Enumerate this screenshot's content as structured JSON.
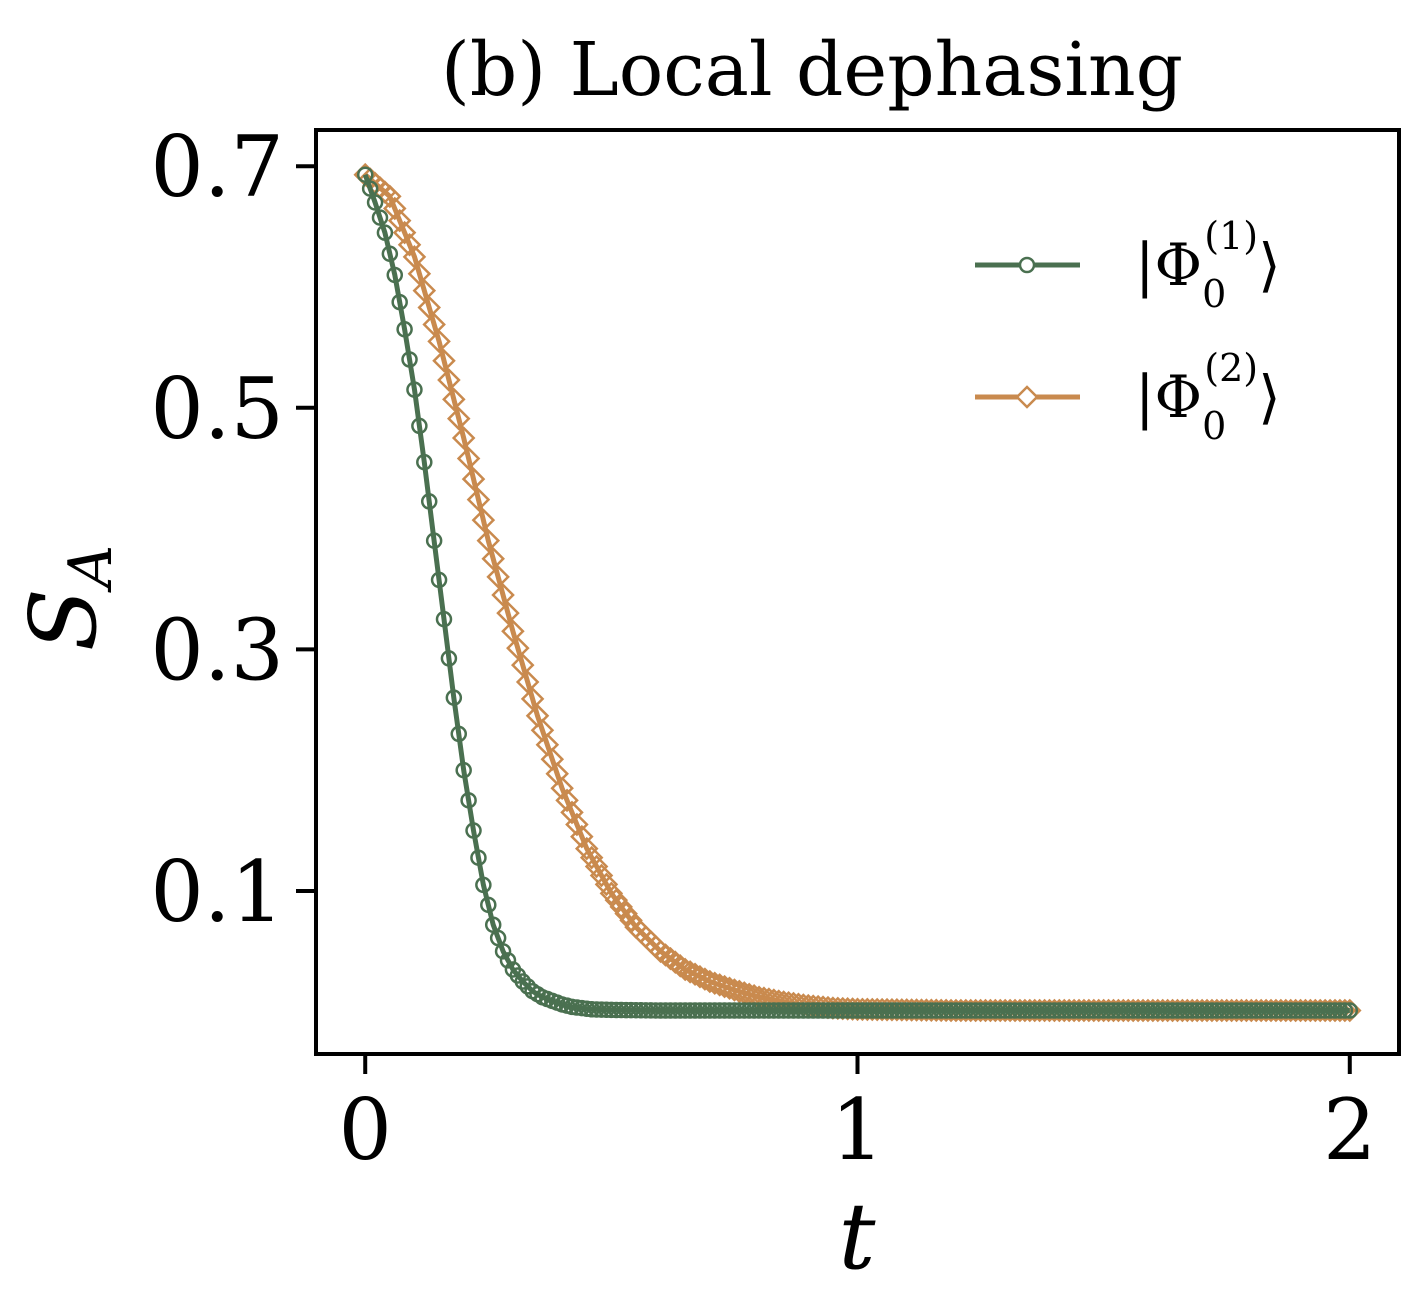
{
  "chart_data": {
    "type": "line",
    "title": "(b) Local dephasing",
    "xlabel": "t",
    "ylabel": "S",
    "ylabel_sub": "A",
    "xlim": [
      -0.1,
      2.1
    ],
    "ylim": [
      -0.035,
      0.73
    ],
    "xticks": [
      0,
      1,
      2
    ],
    "xtick_labels": [
      "0",
      "1",
      "2"
    ],
    "yticks": [
      0.1,
      0.3,
      0.5,
      0.7
    ],
    "ytick_labels": [
      "0.1",
      "0.3",
      "0.5",
      "0.7"
    ],
    "grid": false,
    "legend_position": "top-right",
    "series": [
      {
        "name": "|Φ0(1)⟩",
        "legend_parts": {
          "open": "|Φ",
          "sub": "0",
          "sup": "(1)",
          "close": "⟩"
        },
        "color": "#4a7050",
        "marker": "circle",
        "x": [
          0,
          0.02,
          0.04,
          0.06,
          0.08,
          0.1,
          0.12,
          0.14,
          0.16,
          0.18,
          0.2,
          0.22,
          0.24,
          0.26,
          0.28,
          0.3,
          0.32,
          0.34,
          0.36,
          0.38,
          0.4,
          0.42,
          0.44,
          0.46,
          0.5,
          0.6,
          0.7,
          0.8,
          1.0,
          1.2,
          1.4,
          1.6,
          1.8,
          2.0
        ],
        "y": [
          0.693,
          0.67,
          0.645,
          0.61,
          0.565,
          0.515,
          0.455,
          0.39,
          0.325,
          0.26,
          0.2,
          0.15,
          0.105,
          0.072,
          0.05,
          0.035,
          0.025,
          0.017,
          0.012,
          0.009,
          0.006,
          0.004,
          0.003,
          0.002,
          0.0015,
          0.001,
          0.001,
          0.001,
          0.001,
          0.001,
          0.001,
          0.001,
          0.001,
          0.001
        ]
      },
      {
        "name": "|Φ0(2)⟩",
        "legend_parts": {
          "open": "|Φ",
          "sub": "0",
          "sup": "(2)",
          "close": "⟩"
        },
        "color": "#c98a4e",
        "marker": "diamond",
        "x": [
          0,
          0.05,
          0.1,
          0.15,
          0.2,
          0.25,
          0.3,
          0.35,
          0.4,
          0.45,
          0.5,
          0.55,
          0.6,
          0.65,
          0.7,
          0.75,
          0.8,
          0.85,
          0.9,
          0.95,
          1.0,
          1.1,
          1.2,
          1.3,
          1.4,
          1.6,
          1.8,
          2.0
        ],
        "y": [
          0.693,
          0.675,
          0.625,
          0.555,
          0.475,
          0.39,
          0.315,
          0.245,
          0.185,
          0.135,
          0.098,
          0.07,
          0.05,
          0.035,
          0.025,
          0.018,
          0.012,
          0.008,
          0.005,
          0.003,
          0.002,
          0.0015,
          0.001,
          0.001,
          0.001,
          0.001,
          0.001,
          0.001
        ]
      }
    ]
  }
}
